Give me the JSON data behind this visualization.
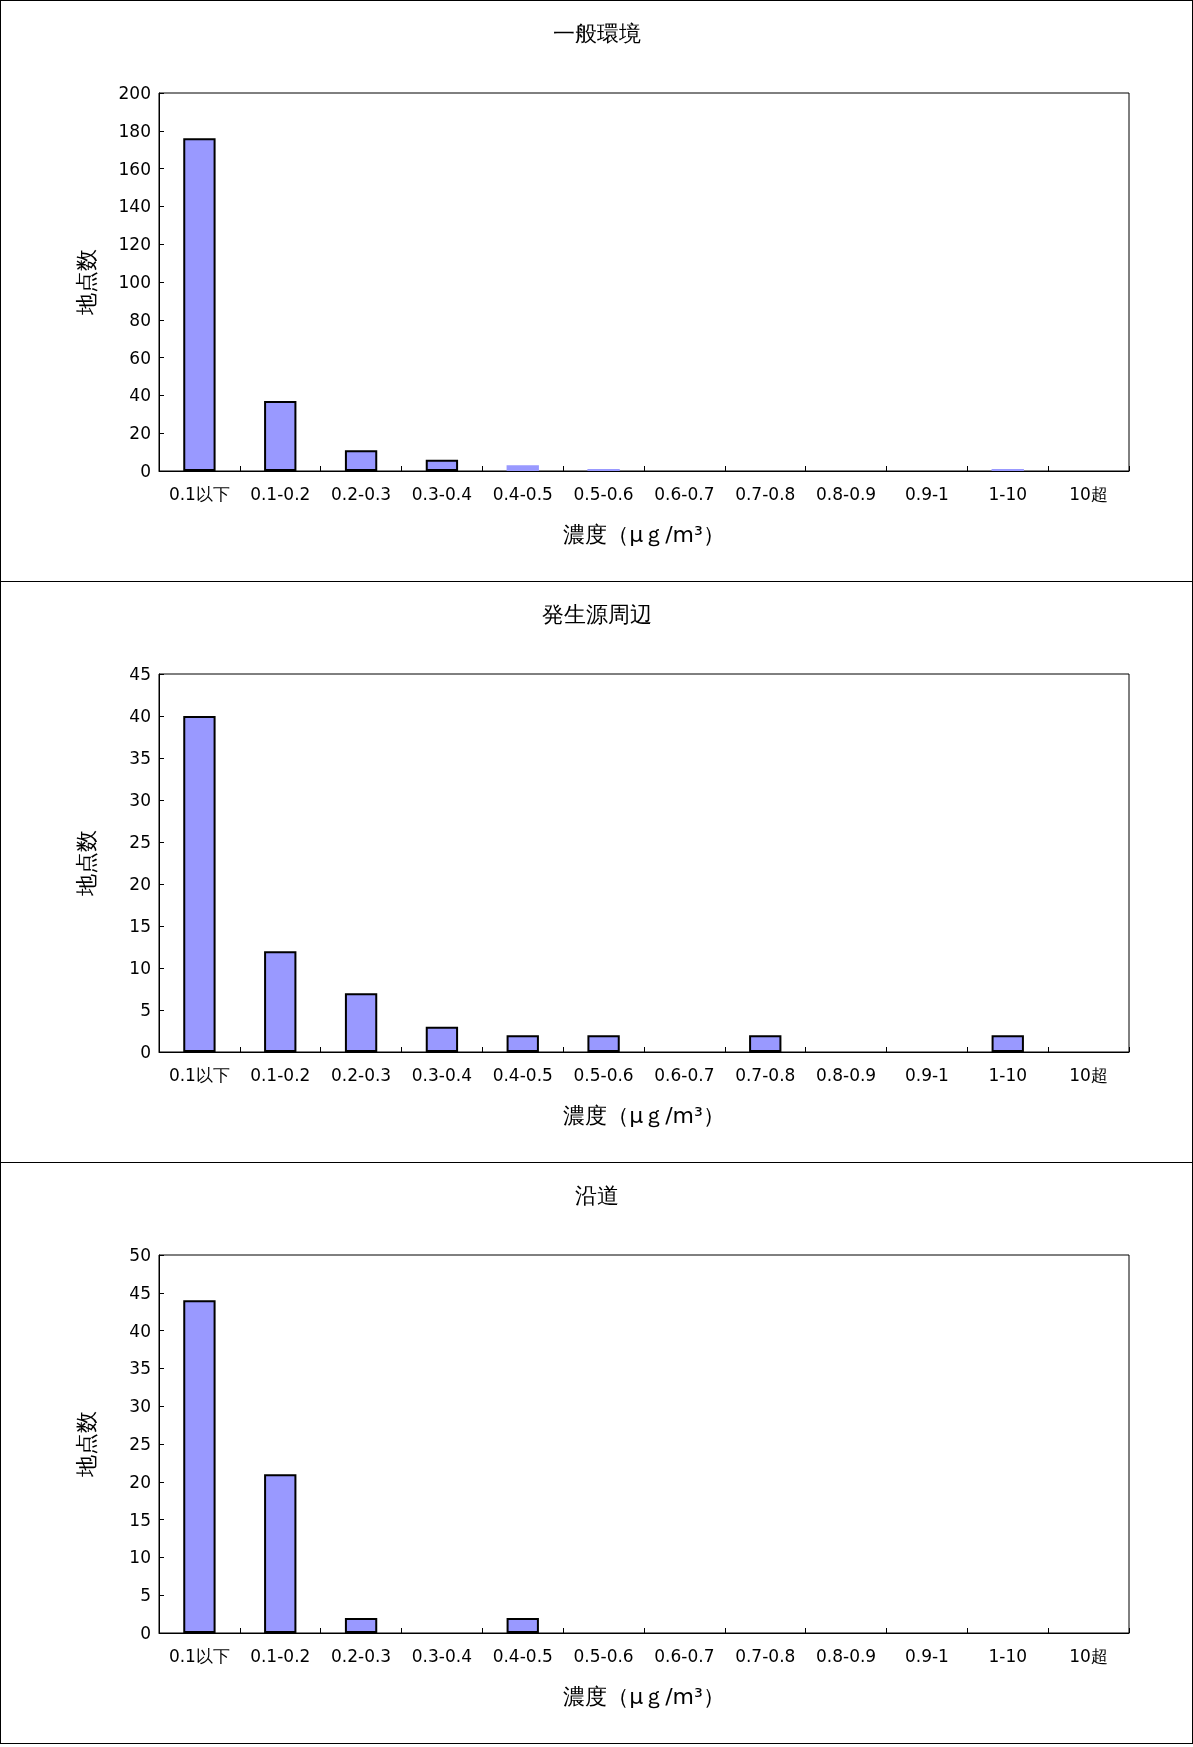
{
  "chart_data": [
    {
      "type": "bar",
      "title": "一般環境",
      "xlabel": "濃度（μｇ/m³）",
      "ylabel": "地点数",
      "categories": [
        "0.1以下",
        "0.1-0.2",
        "0.2-0.3",
        "0.3-0.4",
        "0.4-0.5",
        "0.5-0.6",
        "0.6-0.7",
        "0.7-0.8",
        "0.8-0.9",
        "0.9-1",
        "1-10",
        "10超"
      ],
      "values": [
        176,
        37,
        11,
        6,
        3,
        1,
        0,
        0,
        0,
        0,
        1,
        0
      ],
      "color": "#9999ff",
      "ylim": [
        0,
        200
      ],
      "yticks": [
        0,
        20,
        40,
        60,
        80,
        100,
        120,
        140,
        160,
        180,
        200
      ]
    },
    {
      "type": "bar",
      "title": "発生源周辺",
      "xlabel": "濃度（μｇ/m³）",
      "ylabel": "地点数",
      "categories": [
        "0.1以下",
        "0.1-0.2",
        "0.2-0.3",
        "0.3-0.4",
        "0.4-0.5",
        "0.5-0.6",
        "0.6-0.7",
        "0.7-0.8",
        "0.8-0.9",
        "0.9-1",
        "1-10",
        "10超"
      ],
      "values": [
        40,
        12,
        7,
        3,
        2,
        2,
        0,
        2,
        0,
        0,
        2,
        0
      ],
      "color": "#9999ff",
      "ylim": [
        0,
        45
      ],
      "yticks": [
        0,
        5,
        10,
        15,
        20,
        25,
        30,
        35,
        40,
        45
      ]
    },
    {
      "type": "bar",
      "title": "沿道",
      "xlabel": "濃度（μｇ/m³）",
      "ylabel": "地点数",
      "categories": [
        "0.1以下",
        "0.1-0.2",
        "0.2-0.3",
        "0.3-0.4",
        "0.4-0.5",
        "0.5-0.6",
        "0.6-0.7",
        "0.7-0.8",
        "0.8-0.9",
        "0.9-1",
        "1-10",
        "10超"
      ],
      "values": [
        44,
        21,
        2,
        0,
        2,
        0,
        0,
        0,
        0,
        0,
        0,
        0
      ],
      "color": "#9999ff",
      "ylim": [
        0,
        50
      ],
      "yticks": [
        0,
        5,
        10,
        15,
        20,
        25,
        30,
        35,
        40,
        45,
        50
      ]
    }
  ]
}
